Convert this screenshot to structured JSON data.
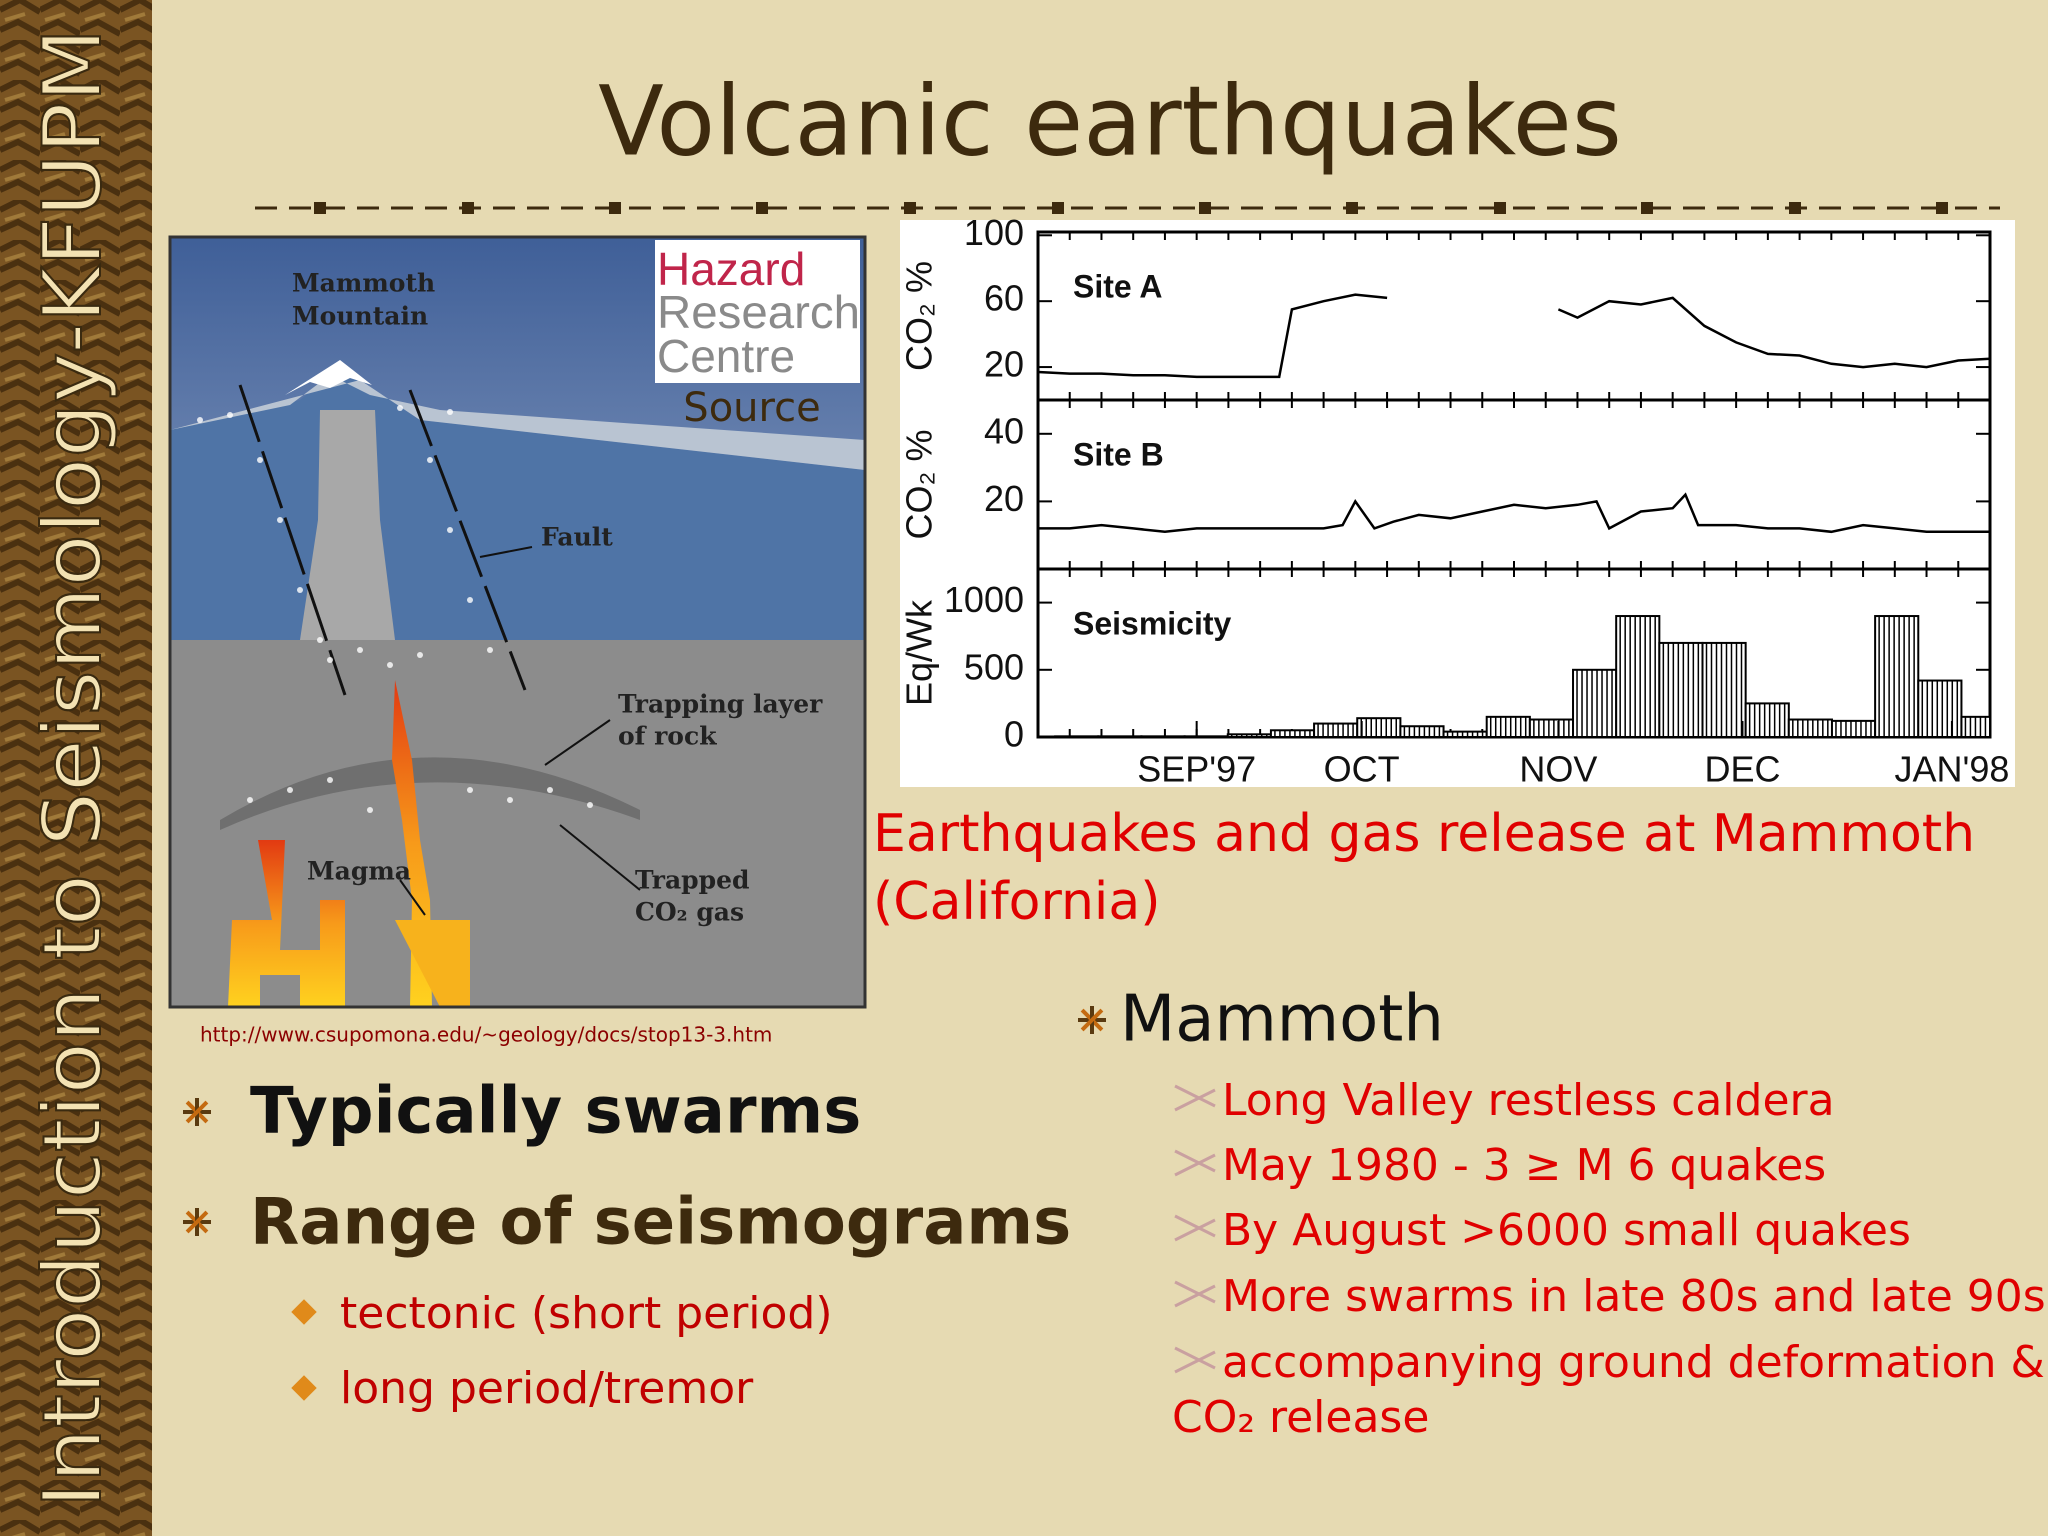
{
  "sidebar": "Introduction to Seismology-KFUPM",
  "title": "Volcanic earthquakes",
  "diagram": {
    "labels": [
      "Mammoth",
      "Mountain",
      "Fault",
      "Trapping layer",
      "of rock",
      "Magma",
      "Trapped",
      "CO₂ gas"
    ],
    "logo": [
      "Hazard",
      "Research",
      "Centre"
    ],
    "source": "Source",
    "url": "http://www.csupomona.edu/~geology/docs/stop13-3.htm"
  },
  "chart_data": [
    {
      "type": "line",
      "title": "Site A",
      "ylabel": "CO₂ %",
      "color": "#000000",
      "xlim": [
        0,
        150
      ],
      "ylim": [
        0,
        102
      ],
      "yticks": [
        100,
        60,
        20
      ],
      "x": [
        0,
        5,
        10,
        15,
        20,
        25,
        30,
        35,
        38,
        40,
        45,
        50,
        55,
        60,
        82,
        85,
        90,
        95,
        100,
        105,
        110,
        115,
        120,
        125,
        130,
        135,
        140,
        145,
        150
      ],
      "values": [
        17,
        16,
        16,
        15,
        15,
        14,
        14,
        14,
        14,
        55,
        60,
        64,
        62,
        null,
        55,
        50,
        60,
        58,
        62,
        45,
        35,
        28,
        27,
        22,
        20,
        22,
        20,
        24,
        25
      ]
    },
    {
      "type": "line",
      "title": "Site B",
      "ylabel": "CO₂ %",
      "color": "#000000",
      "xlim": [
        0,
        150
      ],
      "ylim": [
        0,
        50
      ],
      "yticks": [
        40,
        20
      ],
      "x": [
        0,
        5,
        10,
        15,
        20,
        25,
        30,
        35,
        40,
        45,
        48,
        50,
        53,
        56,
        60,
        65,
        70,
        75,
        80,
        85,
        88,
        90,
        95,
        100,
        102,
        104,
        110,
        115,
        120,
        125,
        130,
        135,
        140,
        145,
        150
      ],
      "values": [
        12,
        12,
        13,
        12,
        11,
        12,
        12,
        12,
        12,
        12,
        13,
        20,
        12,
        14,
        16,
        15,
        17,
        19,
        18,
        19,
        20,
        12,
        17,
        18,
        22,
        13,
        13,
        12,
        12,
        11,
        13,
        12,
        11,
        11,
        11
      ]
    },
    {
      "type": "histogram",
      "title": "Seismicity",
      "ylabel": "Eq/Wk",
      "color": "#ffffff",
      "xlim": [
        0,
        150
      ],
      "ylim": [
        0,
        1250
      ],
      "yticks": [
        1000,
        500,
        0
      ],
      "bins": [
        2.7,
        9.5,
        16.3,
        23.1,
        29.9,
        36.7,
        43.5,
        50.3,
        57.1,
        63.9,
        70.7,
        77.5,
        84.3,
        91.1,
        97.9,
        104.7,
        111.5,
        118.3,
        125.1,
        131.9,
        138.7,
        145.5,
        150
      ],
      "values": [
        5,
        5,
        5,
        5,
        20,
        50,
        100,
        140,
        80,
        40,
        150,
        130,
        500,
        900,
        700,
        700,
        250,
        130,
        120,
        900,
        420,
        150
      ],
      "xticks": [
        {
          "value": 25,
          "label": "SEP'97"
        },
        {
          "value": 51,
          "label": "OCT"
        },
        {
          "value": 82,
          "label": "NOV"
        },
        {
          "value": 111,
          "label": "DEC"
        },
        {
          "value": 144,
          "label": "JAN'98"
        }
      ]
    }
  ],
  "caption": [
    "Earthquakes and gas release at Mammoth",
    "(California)"
  ],
  "left_bullets": {
    "items": [
      "Typically swarms",
      "Range of seismograms"
    ],
    "subitems": [
      "tectonic (short period)",
      "long period/tremor"
    ]
  },
  "right_bullets": {
    "heading": "Mammoth",
    "items": [
      "Long Valley restless caldera",
      "May 1980 - 3 ≥ M 6 quakes",
      "By August >6000 small quakes",
      "More swarms in late 80s and late 90s",
      "accompanying ground deformation &",
      "CO₂ release"
    ]
  }
}
